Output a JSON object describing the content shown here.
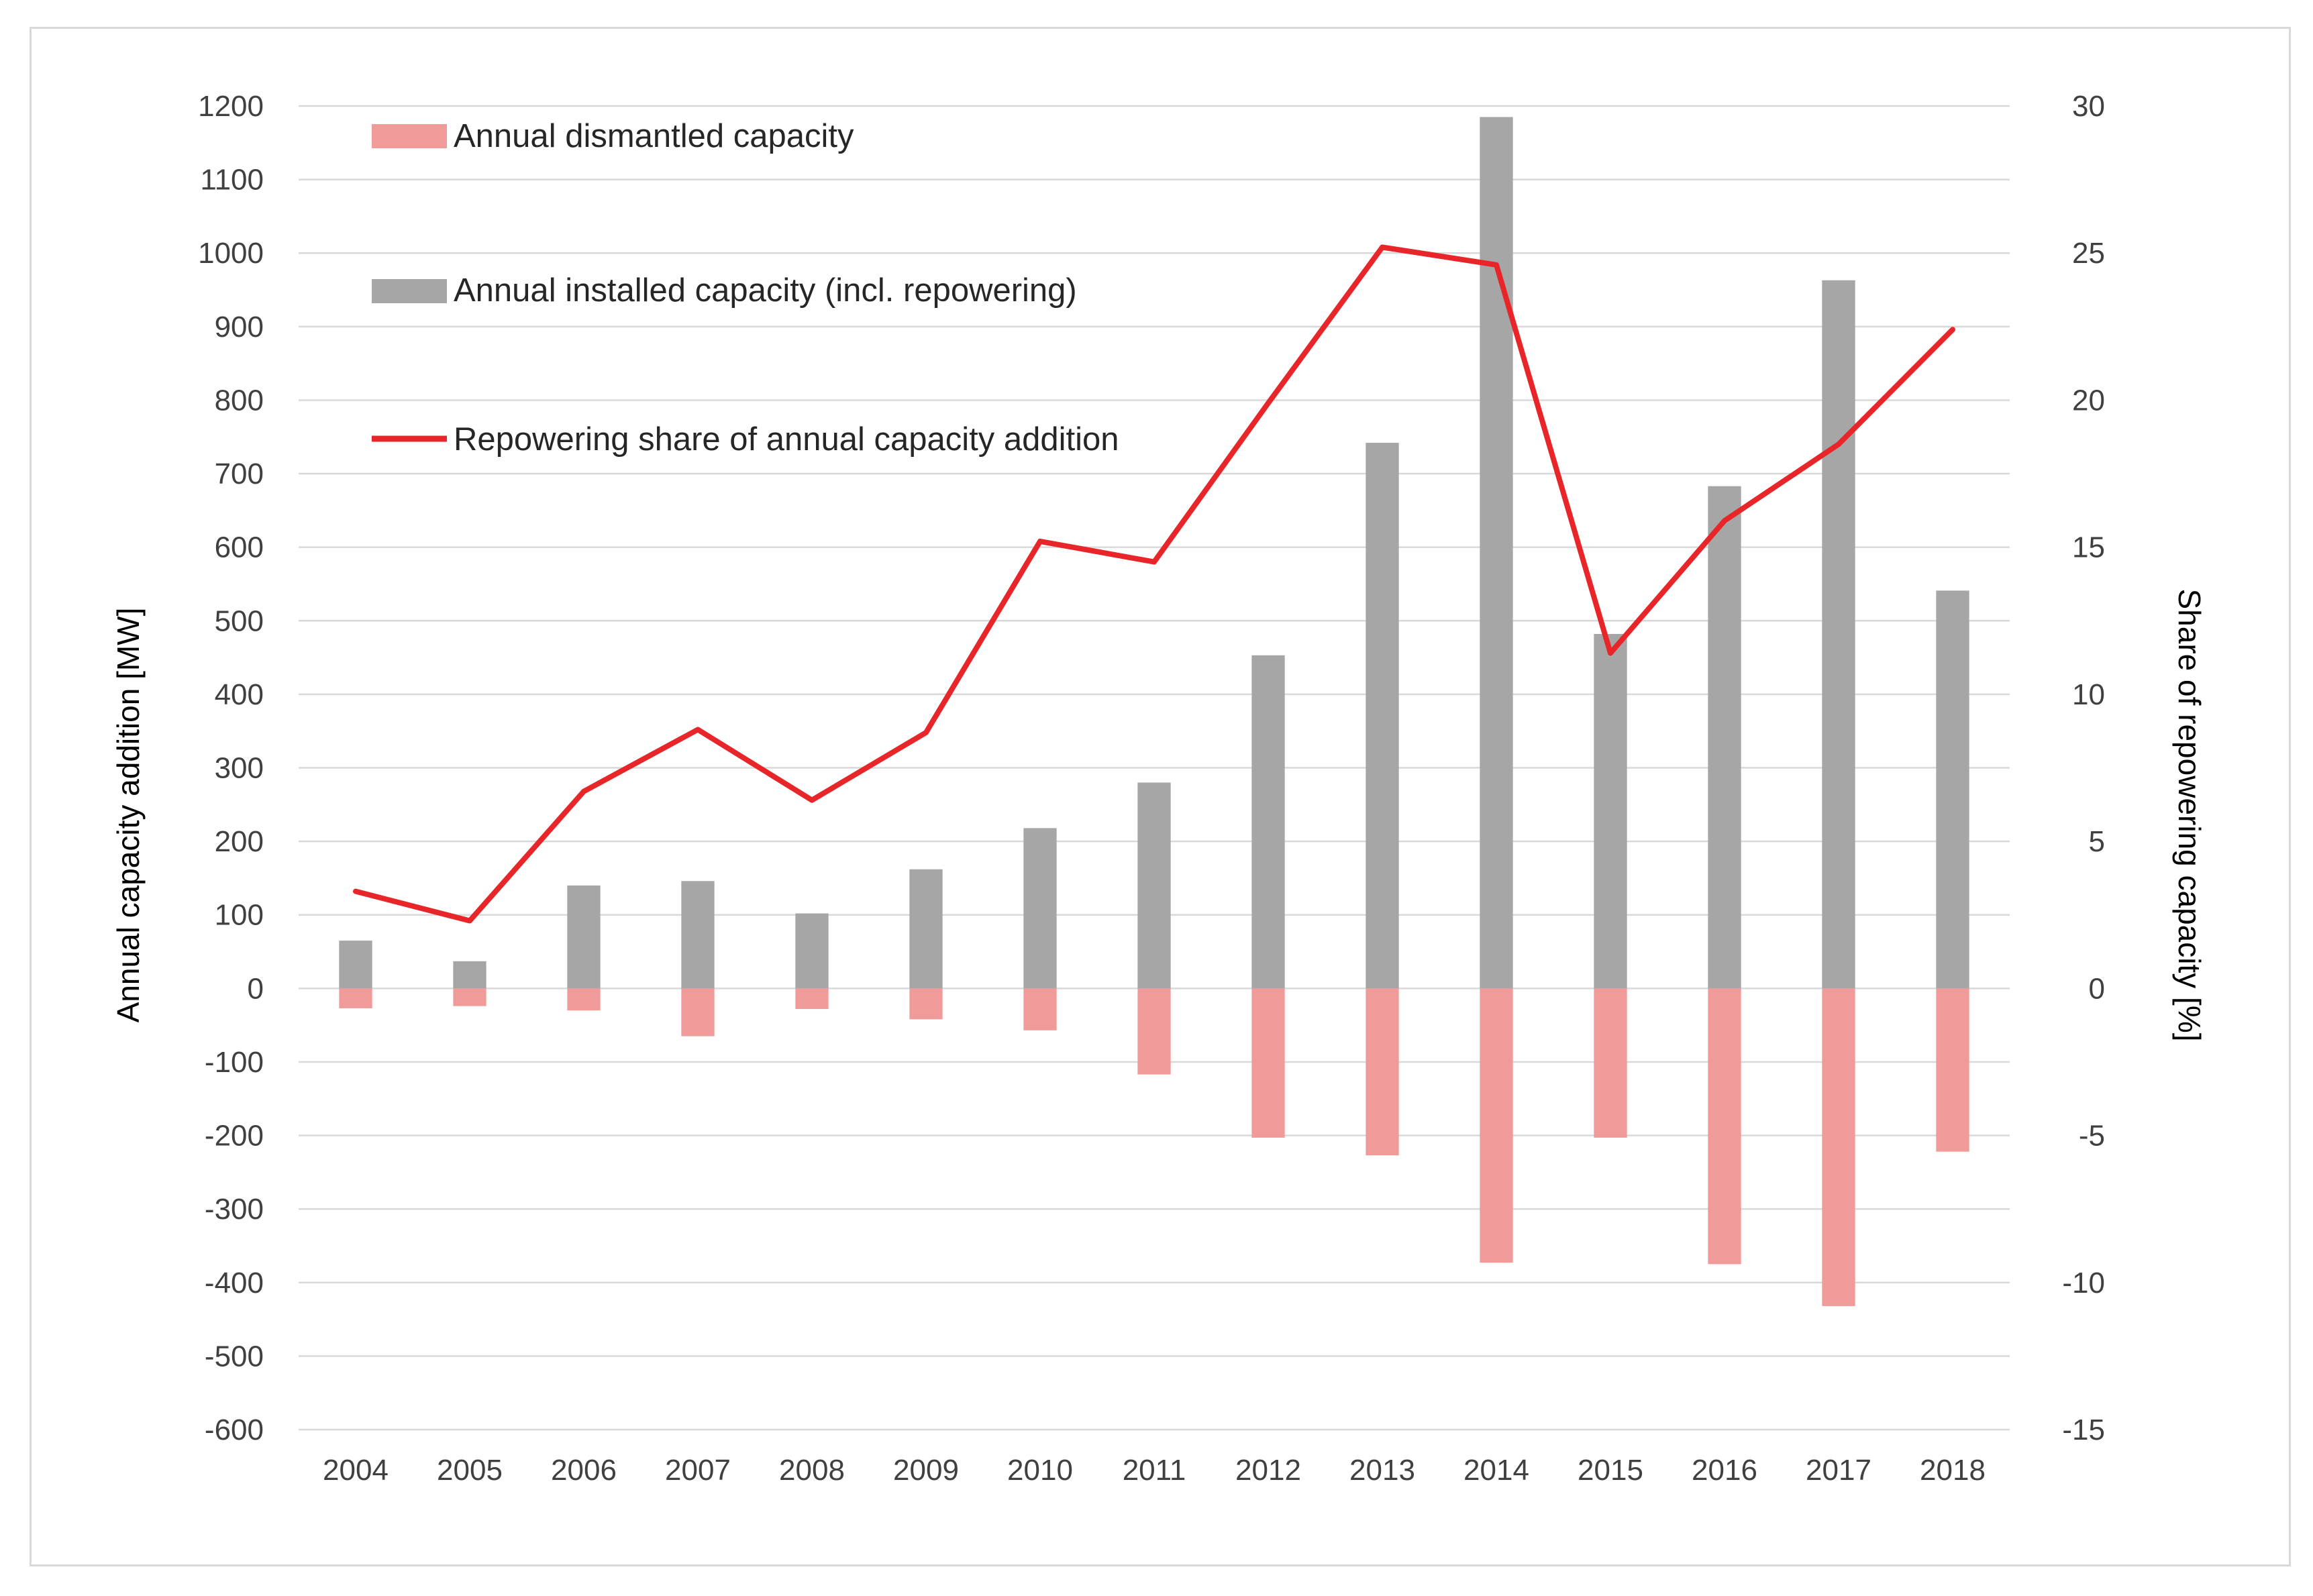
{
  "chart_data": {
    "type": "bar",
    "categories": [
      "2004",
      "2005",
      "2006",
      "2007",
      "2008",
      "2009",
      "2010",
      "2011",
      "2012",
      "2013",
      "2014",
      "2015",
      "2016",
      "2017",
      "2018"
    ],
    "series": [
      {
        "name": "Annual dismantled capacity",
        "kind": "bar",
        "axis": "left",
        "color": "#f09a9a",
        "values": [
          -27,
          -24,
          -30,
          -65,
          -28,
          -42,
          -57,
          -117,
          -203,
          -227,
          -373,
          -203,
          -375,
          -432,
          -222
        ]
      },
      {
        "name": "Annual installed capacity (incl. repowering)",
        "kind": "bar",
        "axis": "left",
        "color": "#a6a6a6",
        "values": [
          65,
          37,
          140,
          146,
          102,
          162,
          218,
          280,
          453,
          742,
          1185,
          482,
          683,
          963,
          541
        ]
      },
      {
        "name": "Repowering share of annual capacity addition",
        "kind": "line",
        "axis": "right",
        "color": "#e8262a",
        "values": [
          3.3,
          2.3,
          6.7,
          8.8,
          6.4,
          8.7,
          15.2,
          14.5,
          19.9,
          25.2,
          24.6,
          11.4,
          15.9,
          18.5,
          22.4
        ]
      }
    ],
    "y_left": {
      "label": "Annual capacity addition [MW]",
      "ylim": [
        -600,
        1200
      ],
      "ticks": [
        "1200",
        "1100",
        "1000",
        "900",
        "800",
        "700",
        "600",
        "500",
        "400",
        "300",
        "200",
        "100",
        "0",
        "-100",
        "-200",
        "-300",
        "-400",
        "-500",
        "-600"
      ]
    },
    "y_right": {
      "label": "Share of repowering capacity [%]",
      "ylim": [
        -15,
        30
      ],
      "ticks": [
        "30",
        "25",
        "20",
        "15",
        "10",
        "5",
        "0",
        "-5",
        "-10",
        "-15"
      ]
    },
    "legend_position": "top-left",
    "grid": true
  }
}
